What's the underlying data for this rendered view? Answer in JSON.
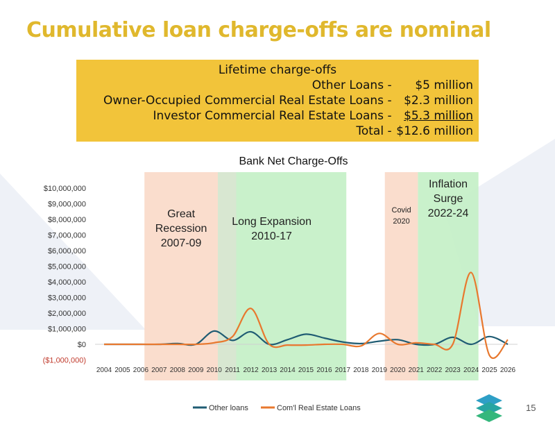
{
  "slide": {
    "title": "Cumulative loan charge-offs are nominal",
    "page_number": "15"
  },
  "summary": {
    "heading": "Lifetime charge-offs",
    "rows": [
      {
        "label": "Other Loans",
        "sep": "-",
        "amount": "$5 million",
        "underline": false
      },
      {
        "label": "Owner-Occupied Commercial Real Estate Loans",
        "sep": "-",
        "amount": "$2.3 million",
        "underline": false
      },
      {
        "label": "Investor Commercial Real Estate Loans",
        "sep": "-",
        "amount": "$5.3 million",
        "underline": true
      },
      {
        "label": "Total",
        "sep": "-",
        "amount": "$12.6 million",
        "underline": false
      }
    ]
  },
  "colors": {
    "title": "#E0B82D",
    "summary_bg": "#F2C43A",
    "other_loans": "#1F5C73",
    "cre_loans": "#E8782E",
    "recession_band": "#FAD9C8",
    "expansion_band": "#C3EFC5",
    "negative_tick": "#C0392B",
    "background_shape": "#EEF1F7"
  },
  "chart_data": {
    "type": "line",
    "title": "Bank Net Charge-Offs",
    "x": [
      2004,
      2005,
      2006,
      2007,
      2008,
      2009,
      2010,
      2011,
      2012,
      2013,
      2014,
      2015,
      2016,
      2017,
      2018,
      2019,
      2020,
      2021,
      2022,
      2023,
      2024,
      2025,
      2026
    ],
    "ylim": [
      -1000000,
      10000000
    ],
    "yticks": [
      -1000000,
      0,
      1000000,
      2000000,
      3000000,
      4000000,
      5000000,
      6000000,
      7000000,
      8000000,
      9000000,
      10000000
    ],
    "ytick_labels": [
      "($1,000,000)",
      "$0",
      "$1,000,000",
      "$2,000,000",
      "$3,000,000",
      "$4,000,000",
      "$5,000,000",
      "$6,000,000",
      "$7,000,000",
      "$8,000,000",
      "$9,000,000",
      "$10,000,000"
    ],
    "xtick_labels": [
      "2004",
      "2005",
      "2006",
      "2007",
      "2008",
      "2009",
      "2010",
      "2011",
      "2012",
      "2013",
      "2014",
      "2015",
      "2016",
      "2017",
      "2018",
      "2019",
      "2020",
      "2021",
      "2022",
      "2023",
      "2024",
      "2025",
      "2026"
    ],
    "grid": false,
    "legend": "bottom",
    "series": [
      {
        "name": "Other loans",
        "color": "#1F5C73",
        "values": [
          0,
          0,
          0,
          0,
          50000,
          0,
          850000,
          250000,
          800000,
          0,
          300000,
          650000,
          400000,
          150000,
          50000,
          200000,
          300000,
          0,
          0,
          450000,
          0,
          500000,
          0
        ]
      },
      {
        "name": "Com'l Real Estate Loans",
        "color": "#E8782E",
        "values": [
          0,
          0,
          0,
          0,
          0,
          0,
          100000,
          500000,
          2300000,
          0,
          -50000,
          -50000,
          0,
          0,
          -100000,
          700000,
          0,
          100000,
          0,
          0,
          4600000,
          -700000,
          300000
        ]
      }
    ],
    "bands": [
      {
        "label": "Great Recession 2007-09",
        "lines": [
          "Great",
          "Recession",
          "2007-09"
        ],
        "from": 2006.2,
        "to": 2010.2,
        "kind": "recession"
      },
      {
        "label": "Long Expansion 2010-17",
        "lines": [
          "Long Expansion",
          "2010-17"
        ],
        "from": 2010.2,
        "to": 2017.2,
        "kind": "expansion"
      },
      {
        "label": "Covid 2020",
        "lines": [
          "Covid",
          "2020"
        ],
        "from": 2019.3,
        "to": 2021.1,
        "kind": "recession"
      },
      {
        "label": "Inflation Surge 2022-24",
        "lines": [
          "Inflation",
          "Surge",
          "2022-24"
        ],
        "from": 2021.1,
        "to": 2024.4,
        "kind": "expansion"
      }
    ]
  }
}
